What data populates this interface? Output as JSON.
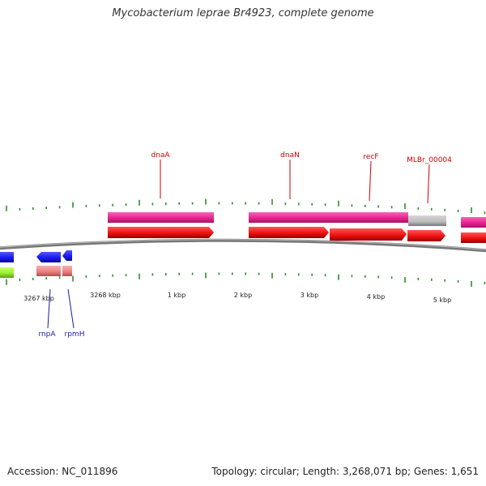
{
  "title": "Mycobacterium leprae Br4923, complete genome",
  "footer": {
    "accession": "Accession: NC_011896",
    "summary": "Topology: circular; Length: 3,268,071 bp; Genes: 1,651"
  },
  "colors": {
    "backbone": "#777777",
    "tick": "#2e8b2e",
    "gene_forward": "#ee1111",
    "cds_forward": "#ee3399",
    "gene_reverse": "#1a1aee",
    "cds_reverse": "#f08080",
    "other_reverse": "#99ee33",
    "pseudo": "#bbbbbb",
    "label_forward": "#cc0000",
    "label_reverse": "#1a1aa6"
  },
  "axis_labels": [
    "3267 kbp",
    "3268 kbp",
    "1 kbp",
    "2 kbp",
    "3 kbp",
    "4 kbp",
    "5 kbp"
  ],
  "forward_gene_labels": [
    "dnaA",
    "dnaN",
    "recF",
    "MLBr_00004"
  ],
  "reverse_gene_labels": [
    "rnpA",
    "rpmH"
  ]
}
